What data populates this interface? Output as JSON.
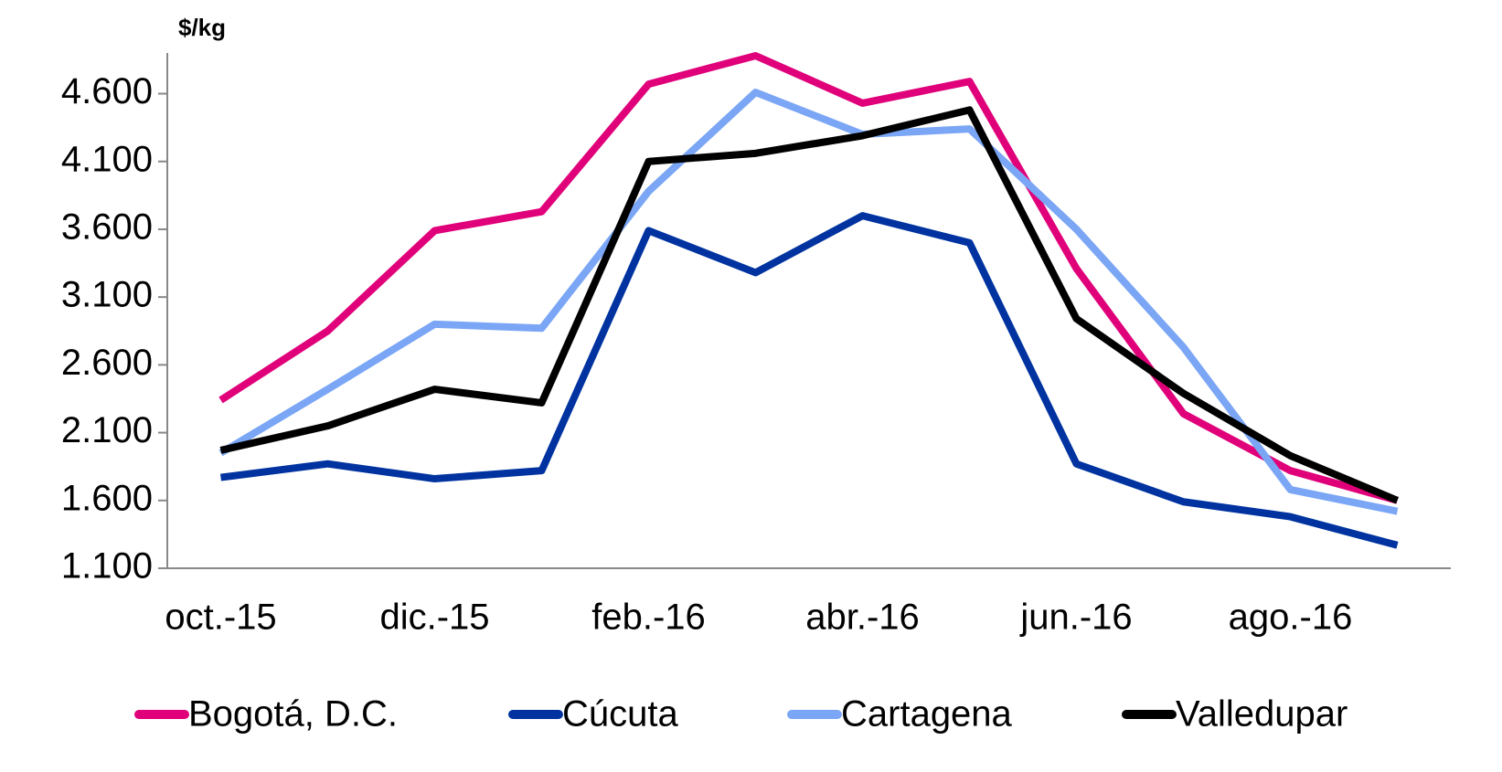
{
  "chart_data": {
    "type": "line",
    "y_label": "$/kg",
    "categories": [
      "oct.-15",
      null,
      "dic.-15",
      null,
      "feb.-16",
      null,
      "abr.-16",
      null,
      "jun.-16",
      null,
      "ago.-16",
      null
    ],
    "series": [
      {
        "name": "Bogotá, D.C.",
        "color": "#e0007a",
        "values": [
          2340,
          2850,
          3590,
          3730,
          4670,
          4880,
          4530,
          4690,
          3310,
          2240,
          1820,
          1600
        ]
      },
      {
        "name": "Cúcuta",
        "color": "#0033a0",
        "values": [
          1770,
          1870,
          1760,
          1820,
          3590,
          3280,
          3700,
          3500,
          1870,
          1590,
          1480,
          1270
        ]
      },
      {
        "name": "Cartagena",
        "color": "#7aa6f5",
        "values": [
          1950,
          2420,
          2900,
          2870,
          3880,
          4610,
          4300,
          4340,
          3600,
          2730,
          1680,
          1520
        ]
      },
      {
        "name": "Valledupar",
        "color": "#000000",
        "values": [
          1970,
          2150,
          2420,
          2320,
          4100,
          4160,
          4290,
          4480,
          2940,
          2390,
          1930,
          1600
        ]
      }
    ],
    "ylim": [
      1100,
      4900
    ],
    "yticks": [
      {
        "value": 1100,
        "label": "1.100"
      },
      {
        "value": 1600,
        "label": "1.600"
      },
      {
        "value": 2100,
        "label": "2.100"
      },
      {
        "value": 2600,
        "label": "2.600"
      },
      {
        "value": 3100,
        "label": "3.100"
      },
      {
        "value": 3600,
        "label": "3.600"
      },
      {
        "value": 4100,
        "label": "4.100"
      },
      {
        "value": 4600,
        "label": "4.600"
      }
    ]
  }
}
